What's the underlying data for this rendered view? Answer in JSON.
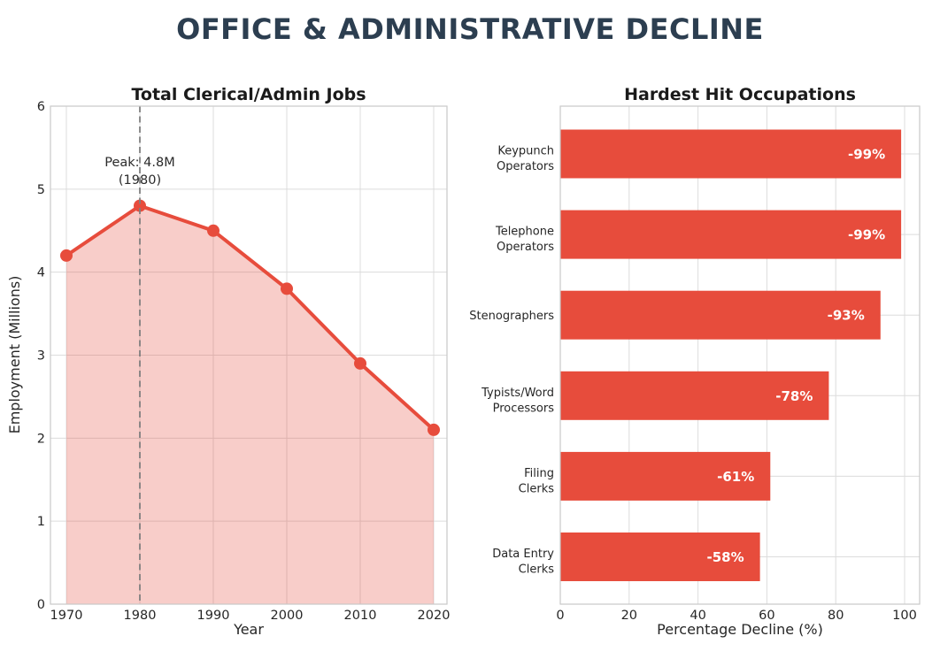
{
  "header": {
    "title": "OFFICE & ADMINISTRATIVE DECLINE"
  },
  "colors": {
    "title_navy": "#2c3e50",
    "accent_red": "#e74c3c",
    "area_fill": "rgba(231,76,60,0.28)",
    "grid_gray": "#dcdcdc",
    "spine_gray": "#c9c9c9",
    "vline_gray": "#7f7f7f",
    "text_dark": "#262626",
    "heading_dark": "#1a1a1a",
    "bar_label_white": "#ffffff"
  },
  "chart_data": [
    {
      "type": "area-line",
      "title": "Total Clerical/Admin Jobs",
      "xlabel": "Year",
      "ylabel": "Employment (Millions)",
      "x": [
        1970,
        1980,
        1990,
        2000,
        2010,
        2020
      ],
      "values": [
        4.2,
        4.8,
        4.5,
        3.8,
        2.9,
        2.1
      ],
      "ylim": [
        0,
        6
      ],
      "yticks": [
        0,
        1,
        2,
        3,
        4,
        5,
        6
      ],
      "xticks": [
        1970,
        1980,
        1990,
        2000,
        2010,
        2020
      ],
      "annotation": {
        "line1": "Peak: 4.8M",
        "line2": "(1980)",
        "x": 1980
      },
      "vline_x": 1980,
      "grid": true,
      "legend": "none"
    },
    {
      "type": "barh",
      "title": "Hardest Hit Occupations",
      "xlabel": "Percentage Decline (%)",
      "categories": [
        [
          "Keypunch",
          "Operators"
        ],
        [
          "Telephone",
          "Operators"
        ],
        [
          "Stenographers"
        ],
        [
          "Typists/Word",
          "Processors"
        ],
        [
          "Filing",
          "Clerks"
        ],
        [
          "Data Entry",
          "Clerks"
        ]
      ],
      "values": [
        99,
        99,
        93,
        78,
        61,
        58
      ],
      "bar_labels": [
        "-99%",
        "-99%",
        "-93%",
        "-78%",
        "-61%",
        "-58%"
      ],
      "xticks": [
        0,
        20,
        40,
        60,
        80,
        100
      ],
      "xlim": [
        0,
        104.4
      ],
      "grid": true,
      "legend": "none"
    }
  ]
}
